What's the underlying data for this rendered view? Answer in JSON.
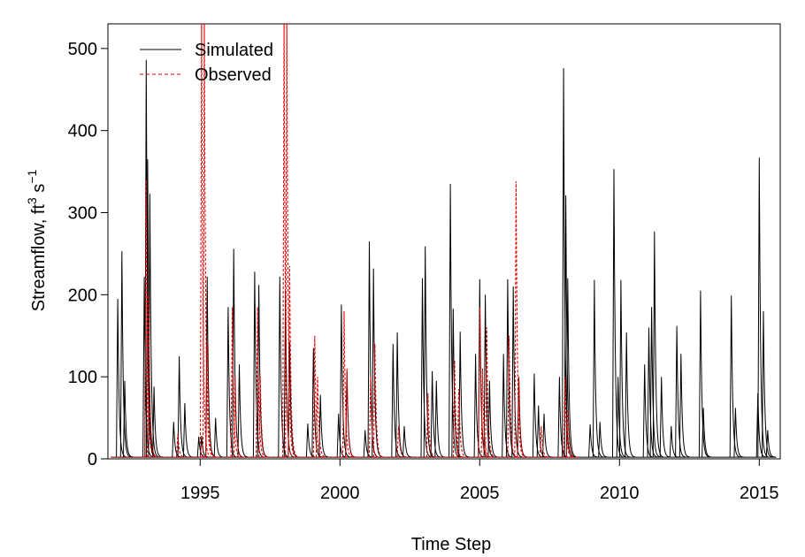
{
  "chart_data": {
    "type": "line",
    "title": "",
    "xlabel": "Time Step",
    "ylabel": {
      "main": "Streamflow, ft",
      "sup1": "3",
      "mid": " s",
      "sup2": "−1"
    },
    "xlim": [
      1991.7,
      2015.75
    ],
    "ylim": [
      0,
      530
    ],
    "xticks": [
      1995,
      2000,
      2005,
      2010,
      2015
    ],
    "yticks": [
      0,
      100,
      200,
      300,
      400,
      500
    ],
    "grid": false,
    "legend_position": "top-left",
    "series": [
      {
        "name": "Simulated",
        "color": "#000000",
        "dash": "solid",
        "peaks": [
          [
            1992.05,
            195
          ],
          [
            1992.2,
            253
          ],
          [
            1992.3,
            95
          ],
          [
            1993.0,
            222
          ],
          [
            1993.07,
            486
          ],
          [
            1993.12,
            365
          ],
          [
            1993.2,
            323
          ],
          [
            1993.35,
            88
          ],
          [
            1994.05,
            45
          ],
          [
            1994.25,
            125
          ],
          [
            1994.45,
            68
          ],
          [
            1994.95,
            27
          ],
          [
            1995.05,
            28
          ],
          [
            1995.25,
            222
          ],
          [
            1995.55,
            50
          ],
          [
            1996.0,
            185
          ],
          [
            1996.2,
            256
          ],
          [
            1996.4,
            115
          ],
          [
            1996.95,
            228
          ],
          [
            1997.1,
            212
          ],
          [
            1997.85,
            222
          ],
          [
            1998.05,
            205
          ],
          [
            1998.2,
            142
          ],
          [
            1998.85,
            43
          ],
          [
            1999.05,
            135
          ],
          [
            1999.3,
            78
          ],
          [
            1999.95,
            55
          ],
          [
            2000.05,
            188
          ],
          [
            2000.25,
            107
          ],
          [
            2000.9,
            35
          ],
          [
            2001.05,
            265
          ],
          [
            2001.2,
            232
          ],
          [
            2001.9,
            140
          ],
          [
            2002.05,
            154
          ],
          [
            2002.3,
            40
          ],
          [
            2002.95,
            220
          ],
          [
            2003.05,
            259
          ],
          [
            2003.3,
            107
          ],
          [
            2003.45,
            95
          ],
          [
            2003.95,
            335
          ],
          [
            2004.05,
            183
          ],
          [
            2004.3,
            155
          ],
          [
            2004.85,
            128
          ],
          [
            2005.0,
            219
          ],
          [
            2005.2,
            200
          ],
          [
            2005.35,
            95
          ],
          [
            2005.85,
            128
          ],
          [
            2006.0,
            219
          ],
          [
            2006.2,
            210
          ],
          [
            2006.4,
            100
          ],
          [
            2006.95,
            104
          ],
          [
            2007.1,
            65
          ],
          [
            2007.3,
            55
          ],
          [
            2007.85,
            100
          ],
          [
            2008.0,
            476
          ],
          [
            2008.08,
            321
          ],
          [
            2008.15,
            220
          ],
          [
            2008.95,
            42
          ],
          [
            2009.1,
            218
          ],
          [
            2009.3,
            45
          ],
          [
            2009.8,
            353
          ],
          [
            2009.95,
            100
          ],
          [
            2010.05,
            218
          ],
          [
            2010.25,
            154
          ],
          [
            2010.9,
            115
          ],
          [
            2011.05,
            160
          ],
          [
            2011.15,
            185
          ],
          [
            2011.25,
            277
          ],
          [
            2011.5,
            100
          ],
          [
            2011.85,
            40
          ],
          [
            2012.05,
            162
          ],
          [
            2012.2,
            128
          ],
          [
            2012.9,
            205
          ],
          [
            2013.0,
            62
          ],
          [
            2014.0,
            199
          ],
          [
            2014.15,
            62
          ],
          [
            2014.95,
            80
          ],
          [
            2015.0,
            367
          ],
          [
            2015.15,
            180
          ],
          [
            2015.3,
            35
          ]
        ]
      },
      {
        "name": "Observed",
        "color": "#e00000",
        "dash": "dashed",
        "peaks": [
          [
            1993.07,
            340
          ],
          [
            1993.15,
            200
          ],
          [
            1994.2,
            30
          ],
          [
            1995.05,
            530
          ],
          [
            1995.15,
            530
          ],
          [
            1995.25,
            142
          ],
          [
            1996.15,
            185
          ],
          [
            1996.25,
            100
          ],
          [
            1997.05,
            185
          ],
          [
            1997.15,
            100
          ],
          [
            1998.0,
            530
          ],
          [
            1998.1,
            530
          ],
          [
            1998.2,
            235
          ],
          [
            1999.1,
            150
          ],
          [
            1999.2,
            100
          ],
          [
            2000.15,
            180
          ],
          [
            2000.25,
            110
          ],
          [
            2001.1,
            100
          ],
          [
            2001.25,
            140
          ],
          [
            2002.1,
            40
          ],
          [
            2003.15,
            80
          ],
          [
            2004.1,
            120
          ],
          [
            2004.25,
            85
          ],
          [
            2005.0,
            185
          ],
          [
            2005.1,
            110
          ],
          [
            2005.25,
            160
          ],
          [
            2006.05,
            150
          ],
          [
            2006.3,
            338
          ],
          [
            2006.4,
            100
          ],
          [
            2007.2,
            40
          ],
          [
            2008.05,
            100
          ],
          [
            2008.15,
            60
          ]
        ]
      }
    ]
  }
}
